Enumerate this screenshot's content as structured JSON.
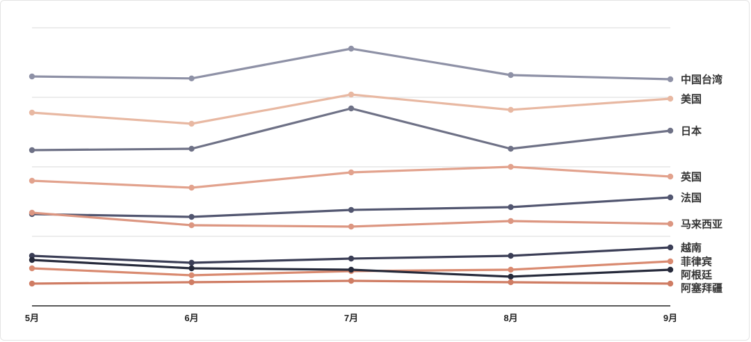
{
  "chart_data": {
    "type": "line",
    "title": "",
    "xlabel": "",
    "ylabel": "",
    "categories": [
      "5月",
      "6月",
      "7月",
      "8月",
      "9月"
    ],
    "ylim": [
      0,
      100
    ],
    "grid": true,
    "legend": "labels at right end of lines",
    "series": [
      {
        "name": "中国台湾",
        "color": "#8e91a6",
        "values": [
          82.5,
          81.8,
          92.5,
          83.0,
          81.5
        ]
      },
      {
        "name": "美国",
        "color": "#e8b8a2",
        "values": [
          69.5,
          65.5,
          76.0,
          70.5,
          74.5
        ]
      },
      {
        "name": "日本",
        "color": "#6e7186",
        "values": [
          56.0,
          56.5,
          71.0,
          56.5,
          63.0
        ]
      },
      {
        "name": "英国",
        "color": "#e2a28d",
        "values": [
          45.0,
          42.5,
          48.0,
          50.0,
          46.5
        ]
      },
      {
        "name": "法国",
        "color": "#525670",
        "values": [
          33.0,
          32.0,
          34.5,
          35.5,
          39.0
        ]
      },
      {
        "name": "马来西亚",
        "color": "#dc9681",
        "values": [
          33.5,
          29.0,
          28.5,
          30.5,
          29.5
        ]
      },
      {
        "name": "越南",
        "color": "#3b3e56",
        "values": [
          18.0,
          15.5,
          17.0,
          18.0,
          21.0
        ]
      },
      {
        "name": "菲律宾",
        "color": "#d98a70",
        "values": [
          13.5,
          11.0,
          12.5,
          13.0,
          16.0
        ]
      },
      {
        "name": "阿根廷",
        "color": "#262a3b",
        "values": [
          16.5,
          13.5,
          13.0,
          10.5,
          13.0
        ]
      },
      {
        "name": "阿塞拜疆",
        "color": "#cf7c63",
        "values": [
          8.0,
          8.5,
          9.0,
          8.5,
          8.0
        ]
      }
    ]
  }
}
